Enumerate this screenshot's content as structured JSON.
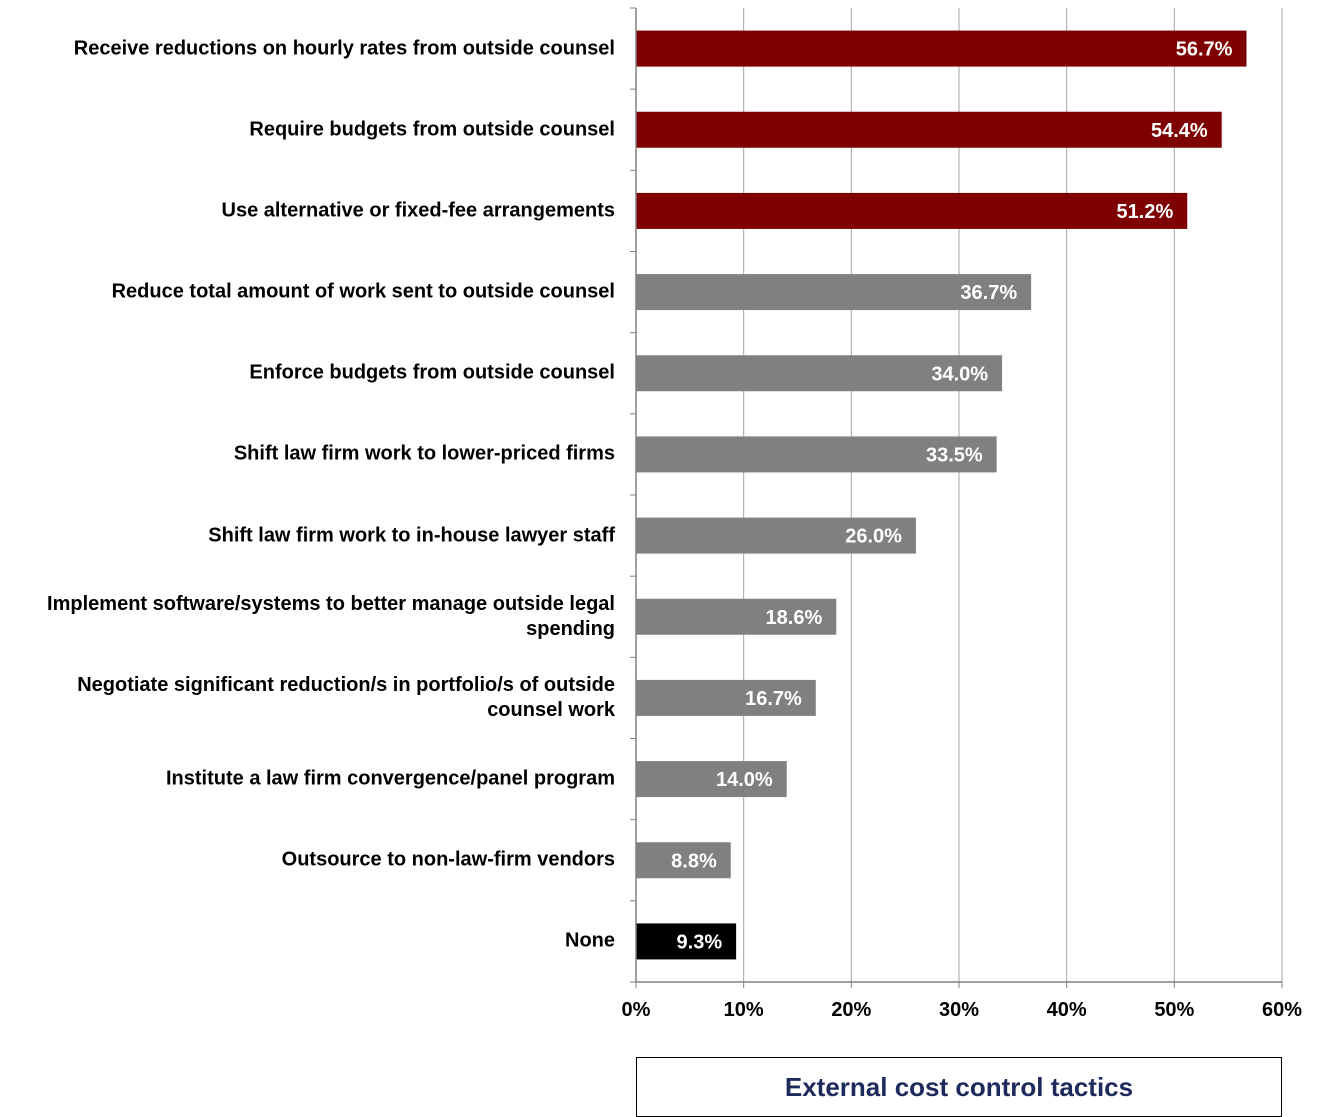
{
  "chart_data": {
    "type": "bar",
    "orientation": "horizontal",
    "categories": [
      "Receive reductions on hourly rates from outside counsel",
      "Require budgets from outside counsel",
      "Use alternative or fixed-fee arrangements",
      "Reduce total amount of work sent to outside counsel",
      "Enforce budgets from outside counsel",
      "Shift law firm work to lower-priced firms",
      "Shift law firm work to in-house lawyer staff",
      "Implement software/systems to better manage outside legal spending",
      "Negotiate significant reduction/s in portfolio/s of outside counsel work",
      "Institute a law firm convergence/panel program",
      "Outsource to non-law-firm vendors",
      "None"
    ],
    "values": [
      56.7,
      54.4,
      51.2,
      36.7,
      34.0,
      33.5,
      26.0,
      18.6,
      16.7,
      14.0,
      8.8,
      9.3
    ],
    "value_labels": [
      "56.7%",
      "54.4%",
      "51.2%",
      "36.7%",
      "34.0%",
      "33.5%",
      "26.0%",
      "18.6%",
      "16.7%",
      "14.0%",
      "8.8%",
      "9.3%"
    ],
    "bar_colors": [
      "#7f0000",
      "#7f0000",
      "#7f0000",
      "#808080",
      "#808080",
      "#808080",
      "#808080",
      "#808080",
      "#808080",
      "#808080",
      "#808080",
      "#000000"
    ],
    "x_ticks": [
      "0%",
      "10%",
      "20%",
      "30%",
      "40%",
      "50%",
      "60%"
    ],
    "xlim": [
      0,
      60
    ],
    "grid": "vertical",
    "xlabel": "",
    "ylabel": "",
    "title": ""
  },
  "legend_box": {
    "text": "External cost control tactics",
    "color": "#1f2a5c"
  }
}
